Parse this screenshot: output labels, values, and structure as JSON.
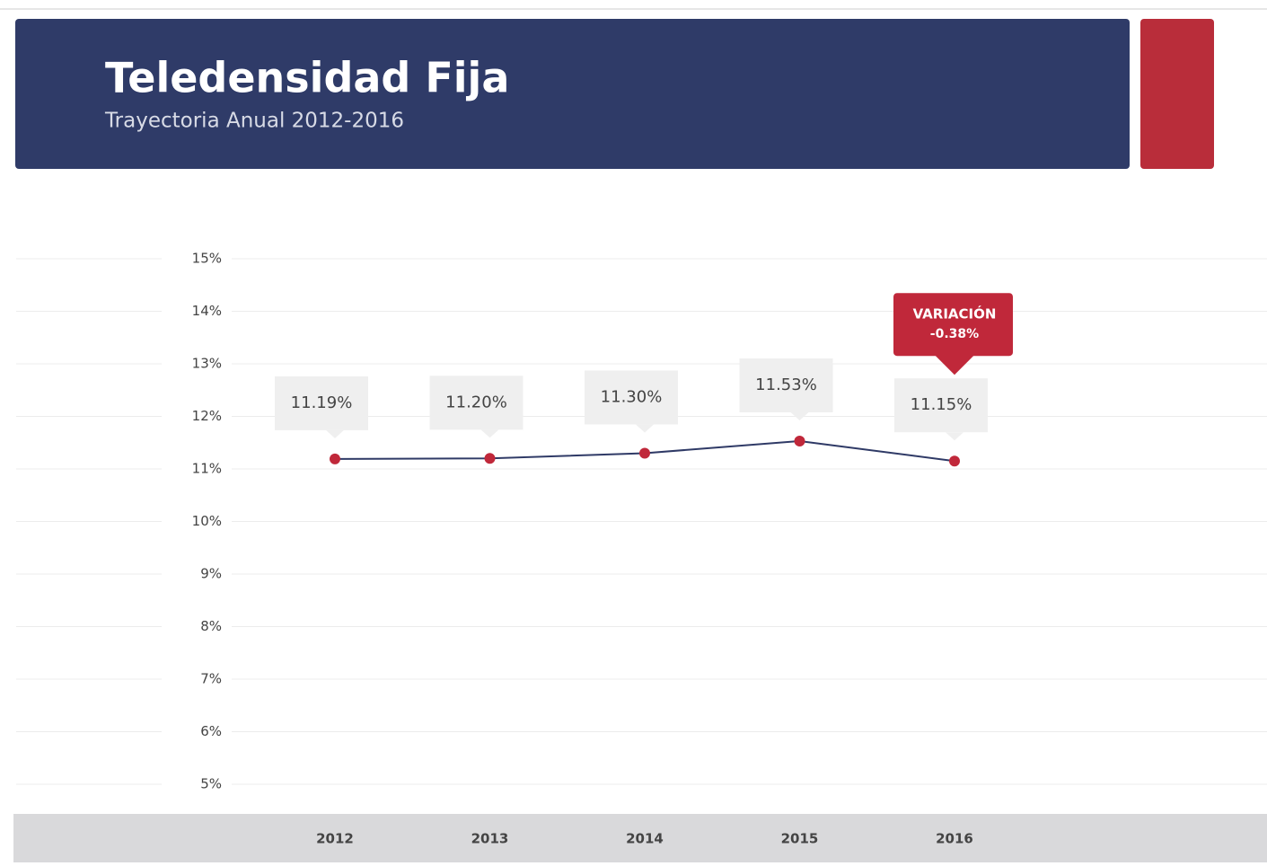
{
  "chart_data": {
    "type": "line",
    "title": "Teledensidad Fija",
    "subtitle": "Trayectoria Anual 2012-2016",
    "categories": [
      "2012",
      "2013",
      "2014",
      "2015",
      "2016"
    ],
    "series": [
      {
        "name": "Teledensidad Fija",
        "color": "#2f3a66",
        "marker_color": "#c0283a",
        "values": [
          11.19,
          11.2,
          11.3,
          11.53,
          11.15
        ],
        "value_labels": [
          "11.19%",
          "11.20%",
          "11.30%",
          "11.53%",
          "11.15%"
        ]
      }
    ],
    "ylim": [
      5,
      15
    ],
    "yticks": [
      {
        "value": 5,
        "label": "5%"
      },
      {
        "value": 6,
        "label": "6%"
      },
      {
        "value": 7,
        "label": "7%"
      },
      {
        "value": 8,
        "label": "8%"
      },
      {
        "value": 9,
        "label": "9%"
      },
      {
        "value": 10,
        "label": "10%"
      },
      {
        "value": 11,
        "label": "11%"
      },
      {
        "value": 12,
        "label": "12%"
      },
      {
        "value": 13,
        "label": "13%"
      },
      {
        "value": 14,
        "label": "14%"
      },
      {
        "value": 15,
        "label": "15%"
      }
    ],
    "grid": true,
    "annotation": {
      "title": "VARIACIÓN",
      "text": "-0.38%"
    }
  }
}
